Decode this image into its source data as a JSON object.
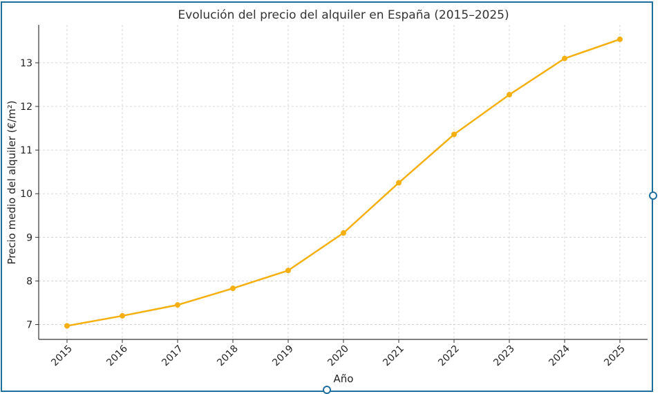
{
  "chart_data": {
    "type": "line",
    "title": "Evolución del precio del alquiler en España (2015–2025)",
    "xlabel": "Año",
    "ylabel": "Precio medio del alquiler (€/m²)",
    "categories": [
      "2015",
      "2016",
      "2017",
      "2018",
      "2019",
      "2020",
      "2021",
      "2022",
      "2023",
      "2024",
      "2025"
    ],
    "series": [
      {
        "values": [
          6.97,
          7.2,
          7.45,
          7.83,
          8.24,
          9.1,
          10.25,
          11.36,
          12.27,
          13.1,
          13.54
        ],
        "color": "#f5b00f"
      }
    ],
    "yticks": [
      7,
      8,
      9,
      10,
      11,
      12,
      13
    ],
    "ylim": [
      6.66,
      13.87
    ],
    "grid": true,
    "legend": "none"
  }
}
